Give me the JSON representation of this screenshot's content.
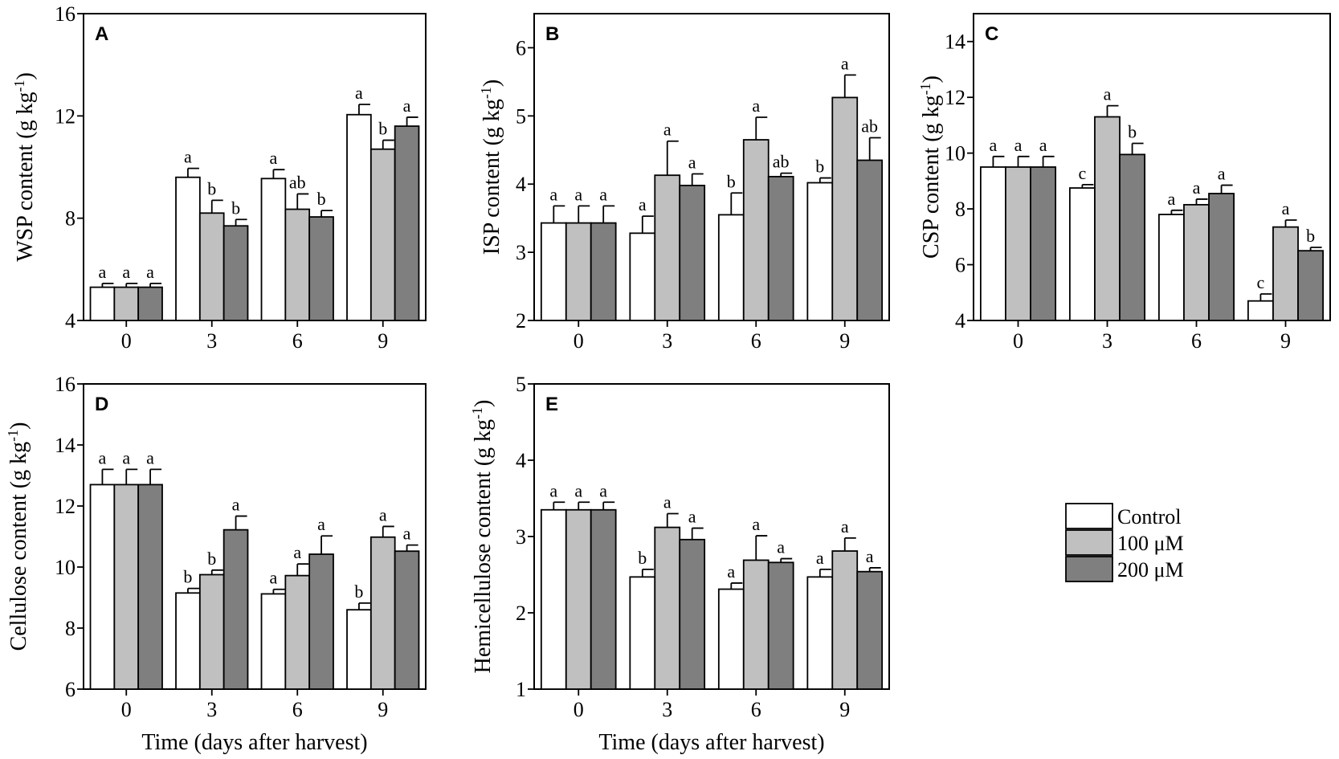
{
  "figure": {
    "x_title": "Time (days after harvest)",
    "legend_entries": [
      "Control",
      "100 μM",
      "200 μM"
    ],
    "series_colors": [
      "#ffffff",
      "#c0c0c0",
      "#7f7f7f"
    ]
  },
  "chart_data": [
    {
      "type": "bar",
      "panel": "A",
      "title": "A",
      "ylabel": "WSP content (g kg",
      "ylabel_sup": "-1",
      "ylabel_close": ")",
      "xlabel": "",
      "categories": [
        "0",
        "3",
        "6",
        "9"
      ],
      "ylim": [
        4,
        16
      ],
      "yticks": [
        4,
        8,
        12,
        16
      ],
      "series": [
        {
          "name": "Control",
          "values": [
            5.3,
            9.6,
            9.55,
            12.05
          ],
          "errors": [
            0.15,
            0.35,
            0.35,
            0.4
          ],
          "letters": [
            "a",
            "a",
            "a",
            "a"
          ]
        },
        {
          "name": "100 μM",
          "values": [
            5.3,
            8.2,
            8.35,
            10.7
          ],
          "errors": [
            0.15,
            0.5,
            0.6,
            0.35
          ],
          "letters": [
            "a",
            "b",
            "ab",
            "b"
          ]
        },
        {
          "name": "200 μM",
          "values": [
            5.3,
            7.7,
            8.05,
            11.6
          ],
          "errors": [
            0.15,
            0.25,
            0.25,
            0.35
          ],
          "letters": [
            "a",
            "b",
            "b",
            "a"
          ]
        }
      ]
    },
    {
      "type": "bar",
      "panel": "B",
      "title": "B",
      "ylabel": "ISP content (g kg",
      "ylabel_sup": "-1",
      "ylabel_close": ")",
      "xlabel": "",
      "categories": [
        "0",
        "3",
        "6",
        "9"
      ],
      "ylim": [
        2,
        6.5
      ],
      "yticks": [
        2,
        3,
        4,
        5,
        6
      ],
      "series": [
        {
          "name": "Control",
          "values": [
            3.43,
            3.28,
            3.55,
            4.02
          ],
          "errors": [
            0.25,
            0.25,
            0.32,
            0.07
          ],
          "letters": [
            "a",
            "a",
            "b",
            "b"
          ]
        },
        {
          "name": "100 μM",
          "values": [
            3.43,
            4.13,
            4.65,
            5.27
          ],
          "errors": [
            0.25,
            0.5,
            0.33,
            0.33
          ],
          "letters": [
            "a",
            "a",
            "a",
            "a"
          ]
        },
        {
          "name": "200 μM",
          "values": [
            3.43,
            3.98,
            4.11,
            4.35
          ],
          "errors": [
            0.25,
            0.17,
            0.05,
            0.33
          ],
          "letters": [
            "a",
            "a",
            "ab",
            "ab"
          ]
        }
      ]
    },
    {
      "type": "bar",
      "panel": "C",
      "title": "C",
      "ylabel": "CSP content (g kg",
      "ylabel_sup": "-1",
      "ylabel_close": ")",
      "xlabel": "",
      "categories": [
        "0",
        "3",
        "6",
        "9"
      ],
      "ylim": [
        4,
        15
      ],
      "yticks": [
        4,
        6,
        8,
        10,
        12,
        14
      ],
      "series": [
        {
          "name": "Control",
          "values": [
            9.5,
            8.75,
            7.8,
            4.7
          ],
          "errors": [
            0.38,
            0.12,
            0.15,
            0.25
          ],
          "letters": [
            "a",
            "c",
            "a",
            "c"
          ]
        },
        {
          "name": "100 μM",
          "values": [
            9.5,
            11.3,
            8.15,
            7.35
          ],
          "errors": [
            0.38,
            0.4,
            0.2,
            0.25
          ],
          "letters": [
            "a",
            "a",
            "a",
            "a"
          ]
        },
        {
          "name": "200 μM",
          "values": [
            9.5,
            9.95,
            8.55,
            6.5
          ],
          "errors": [
            0.38,
            0.4,
            0.3,
            0.12
          ],
          "letters": [
            "a",
            "b",
            "a",
            "b"
          ]
        }
      ]
    },
    {
      "type": "bar",
      "panel": "D",
      "title": "D",
      "ylabel": "Cellulose content (g kg",
      "ylabel_sup": "-1",
      "ylabel_close": ")",
      "xlabel": "Time (days after harvest)",
      "categories": [
        "0",
        "3",
        "6",
        "9"
      ],
      "ylim": [
        6,
        16
      ],
      "yticks": [
        6,
        8,
        10,
        12,
        14,
        16
      ],
      "series": [
        {
          "name": "Control",
          "values": [
            12.7,
            9.15,
            9.12,
            8.6
          ],
          "errors": [
            0.5,
            0.15,
            0.15,
            0.22
          ],
          "letters": [
            "a",
            "b",
            "a",
            "b"
          ]
        },
        {
          "name": "100 μM",
          "values": [
            12.7,
            9.75,
            9.72,
            10.98
          ],
          "errors": [
            0.5,
            0.15,
            0.38,
            0.35
          ],
          "letters": [
            "a",
            "b",
            "a",
            "a"
          ]
        },
        {
          "name": "200 μM",
          "values": [
            12.7,
            11.22,
            10.42,
            10.52
          ],
          "errors": [
            0.5,
            0.45,
            0.6,
            0.2
          ],
          "letters": [
            "a",
            "a",
            "a",
            "a"
          ]
        }
      ]
    },
    {
      "type": "bar",
      "panel": "E",
      "title": "E",
      "ylabel": "Hemicellulose content (g kg",
      "ylabel_sup": "-1",
      "ylabel_close": ")",
      "xlabel": "Time (days after harvest)",
      "categories": [
        "0",
        "3",
        "6",
        "9"
      ],
      "ylim": [
        1,
        5
      ],
      "yticks": [
        1,
        2,
        3,
        4,
        5
      ],
      "series": [
        {
          "name": "Control",
          "values": [
            3.35,
            2.47,
            2.31,
            2.47
          ],
          "errors": [
            0.1,
            0.1,
            0.08,
            0.1
          ],
          "letters": [
            "a",
            "b",
            "a",
            "a"
          ]
        },
        {
          "name": "100 μM",
          "values": [
            3.35,
            3.12,
            2.69,
            2.81
          ],
          "errors": [
            0.1,
            0.18,
            0.32,
            0.17
          ],
          "letters": [
            "a",
            "a",
            "a",
            "a"
          ]
        },
        {
          "name": "200 μM",
          "values": [
            3.35,
            2.96,
            2.66,
            2.54
          ],
          "errors": [
            0.1,
            0.15,
            0.05,
            0.05
          ],
          "letters": [
            "a",
            "a",
            "a",
            "a"
          ]
        }
      ]
    }
  ]
}
